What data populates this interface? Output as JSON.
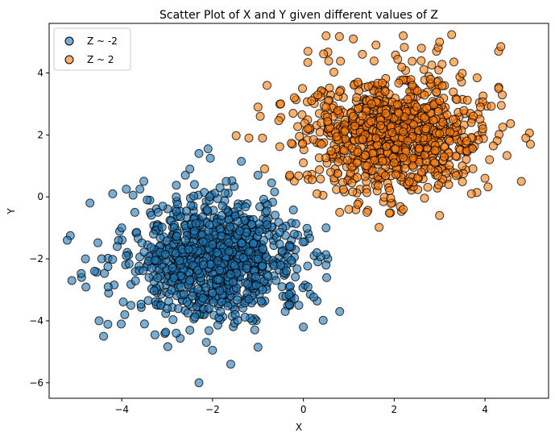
{
  "chart_data": {
    "type": "scatter",
    "title": "Scatter Plot of X and Y given different values of Z",
    "xlabel": "X",
    "ylabel": "Y",
    "xlim": [
      -5.6,
      5.4
    ],
    "ylim": [
      -6.5,
      5.6
    ],
    "xticks": [
      -4,
      -2,
      0,
      2,
      4
    ],
    "yticks": [
      -6,
      -4,
      -2,
      0,
      2,
      4
    ],
    "xtick_labels": [
      "−4",
      "−2",
      "0",
      "2",
      "4"
    ],
    "ytick_labels": [
      "−6",
      "−4",
      "−2",
      "0",
      "2",
      "4"
    ],
    "grid": false,
    "legend": "top-left",
    "series": [
      {
        "name": "Z ~ -2",
        "color": "#1f77b4",
        "center": [
          -2,
          -2
        ],
        "std": [
          1,
          1
        ],
        "n_points": 1000,
        "points": [
          [
            -5.2,
            -1.4
          ],
          [
            -5.1,
            -2.7
          ],
          [
            -4.8,
            -2.0
          ],
          [
            -4.7,
            -0.2
          ],
          [
            -4.5,
            -4.0
          ],
          [
            -4.4,
            -4.5
          ],
          [
            -4.2,
            0.1
          ],
          [
            -3.9,
            0.25
          ],
          [
            -3.6,
            0.25
          ],
          [
            -3.1,
            -0.3
          ],
          [
            -2.8,
            0.0
          ],
          [
            -2.6,
            0.7
          ],
          [
            -2.5,
            0.9
          ],
          [
            -2.4,
            0.4
          ],
          [
            -2.3,
            -6.0
          ],
          [
            -2.3,
            1.4
          ],
          [
            -2.1,
            1.55
          ],
          [
            -2.05,
            1.25
          ],
          [
            -2.0,
            -4.95
          ],
          [
            -1.6,
            -5.4
          ],
          [
            -1.7,
            0.5
          ],
          [
            -1.0,
            0.7
          ],
          [
            -1.0,
            -4.85
          ],
          [
            -0.7,
            0.45
          ],
          [
            0.0,
            -4.2
          ],
          [
            -0.4,
            -3.7
          ],
          [
            0.1,
            -2.9
          ],
          [
            0.5,
            -2.2
          ],
          [
            0.5,
            -1.0
          ],
          [
            0.8,
            -3.7
          ],
          [
            -4.6,
            -2.4
          ],
          [
            -4.3,
            -2.9
          ],
          [
            -3.8,
            -3.5
          ],
          [
            -3.5,
            -4.1
          ],
          [
            -3.3,
            -1.2
          ],
          [
            -3.0,
            -3.6
          ],
          [
            -2.8,
            -4.4
          ],
          [
            -2.5,
            -4.3
          ],
          [
            -2.6,
            -1.4
          ],
          [
            -2.2,
            -2.2
          ],
          [
            -1.9,
            -1.8
          ],
          [
            -1.6,
            -2.5
          ],
          [
            -1.4,
            -1.1
          ],
          [
            -1.2,
            -3.3
          ],
          [
            -1.0,
            -2.0
          ],
          [
            -0.8,
            -0.9
          ],
          [
            -0.6,
            -2.7
          ],
          [
            -0.3,
            -1.6
          ],
          [
            -3.9,
            -1.9
          ],
          [
            -3.4,
            -2.6
          ],
          [
            -4.0,
            -1.0
          ],
          [
            -4.1,
            -1.6
          ],
          [
            -3.2,
            -0.5
          ],
          [
            -2.7,
            -2.9
          ],
          [
            -2.4,
            -1.1
          ],
          [
            -2.0,
            -3.1
          ],
          [
            -1.8,
            -0.6
          ],
          [
            -1.5,
            -3.8
          ],
          [
            -1.1,
            -1.5
          ],
          [
            -0.9,
            -3.0
          ],
          [
            -0.5,
            -2.2
          ],
          [
            -0.2,
            -1.2
          ],
          [
            -0.1,
            -3.5
          ],
          [
            0.3,
            -1.8
          ]
        ]
      },
      {
        "name": "Z ~ 2",
        "color": "#ff7f0e",
        "center": [
          2,
          2
        ],
        "std": [
          1,
          1
        ],
        "n_points": 1000,
        "points": [
          [
            -0.9,
            1.9
          ],
          [
            -1.2,
            1.9
          ],
          [
            -1.0,
            2.9
          ],
          [
            -0.95,
            2.6
          ],
          [
            -0.8,
            3.6
          ],
          [
            -0.5,
            3.0
          ],
          [
            -0.2,
            3.2
          ],
          [
            0.1,
            2.2
          ],
          [
            0.1,
            4.7
          ],
          [
            0.5,
            5.2
          ],
          [
            1.1,
            5.1
          ],
          [
            1.3,
            4.6
          ],
          [
            1.6,
            4.9
          ],
          [
            2.2,
            5.2
          ],
          [
            2.6,
            4.8
          ],
          [
            3.0,
            5.0
          ],
          [
            4.3,
            4.7
          ],
          [
            4.35,
            4.85
          ],
          [
            4.9,
            1.9
          ],
          [
            5.0,
            1.7
          ],
          [
            4.8,
            0.5
          ],
          [
            3.7,
            0.1
          ],
          [
            3.0,
            -0.6
          ],
          [
            2.2,
            -0.4
          ],
          [
            1.4,
            -0.5
          ],
          [
            1.0,
            -0.4
          ],
          [
            0.8,
            -0.5
          ],
          [
            0.3,
            0.1
          ],
          [
            -0.3,
            0.7
          ],
          [
            0.0,
            1.1
          ],
          [
            0.5,
            2.9
          ],
          [
            0.8,
            3.4
          ],
          [
            1.2,
            3.7
          ],
          [
            1.5,
            3.0
          ],
          [
            1.8,
            3.4
          ],
          [
            2.1,
            2.7
          ],
          [
            2.4,
            3.6
          ],
          [
            2.7,
            2.2
          ],
          [
            3.0,
            3.1
          ],
          [
            3.3,
            2.5
          ],
          [
            3.6,
            1.8
          ],
          [
            3.9,
            2.9
          ],
          [
            4.1,
            1.2
          ],
          [
            4.3,
            3.5
          ],
          [
            4.0,
            0.6
          ],
          [
            3.5,
            1.0
          ],
          [
            3.2,
            0.4
          ],
          [
            2.9,
            1.5
          ],
          [
            2.6,
            0.8
          ],
          [
            2.3,
            1.8
          ],
          [
            2.0,
            1.1
          ],
          [
            1.7,
            2.3
          ],
          [
            1.4,
            1.0
          ],
          [
            1.1,
            2.6
          ],
          [
            0.9,
            1.5
          ],
          [
            0.6,
            0.8
          ],
          [
            0.4,
            1.7
          ],
          [
            1.9,
            0.2
          ],
          [
            2.5,
            2.9
          ],
          [
            3.1,
            1.3
          ],
          [
            1.6,
            1.9
          ],
          [
            2.2,
            2.1
          ],
          [
            2.8,
            3.8
          ],
          [
            3.7,
            2.4
          ]
        ]
      }
    ]
  }
}
